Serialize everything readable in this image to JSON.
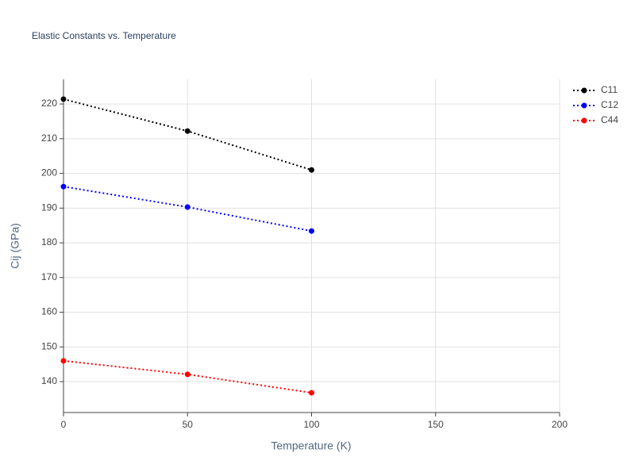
{
  "chart_data": {
    "type": "line",
    "title": "Elastic Constants vs. Temperature",
    "x_label": "Temperature (K)",
    "y_label": "Cij (GPa)",
    "x": [
      0,
      50,
      100
    ],
    "series": [
      {
        "name": "C11",
        "color": "#000000",
        "values": [
          221.4,
          212.2,
          201.0
        ]
      },
      {
        "name": "C12",
        "color": "#0000ff",
        "values": [
          196.2,
          190.3,
          183.4
        ]
      },
      {
        "name": "C44",
        "color": "#ff0000",
        "values": [
          146.0,
          142.1,
          136.8
        ]
      }
    ],
    "xlim": [
      0,
      200
    ],
    "xticks": [
      0,
      50,
      100,
      150,
      200
    ],
    "ylim": [
      131.1,
      227.1
    ],
    "yticks": [
      140,
      150,
      160,
      170,
      180,
      190,
      200,
      210,
      220
    ],
    "grid": true,
    "legend": "top-right",
    "line_style": "dotted"
  }
}
